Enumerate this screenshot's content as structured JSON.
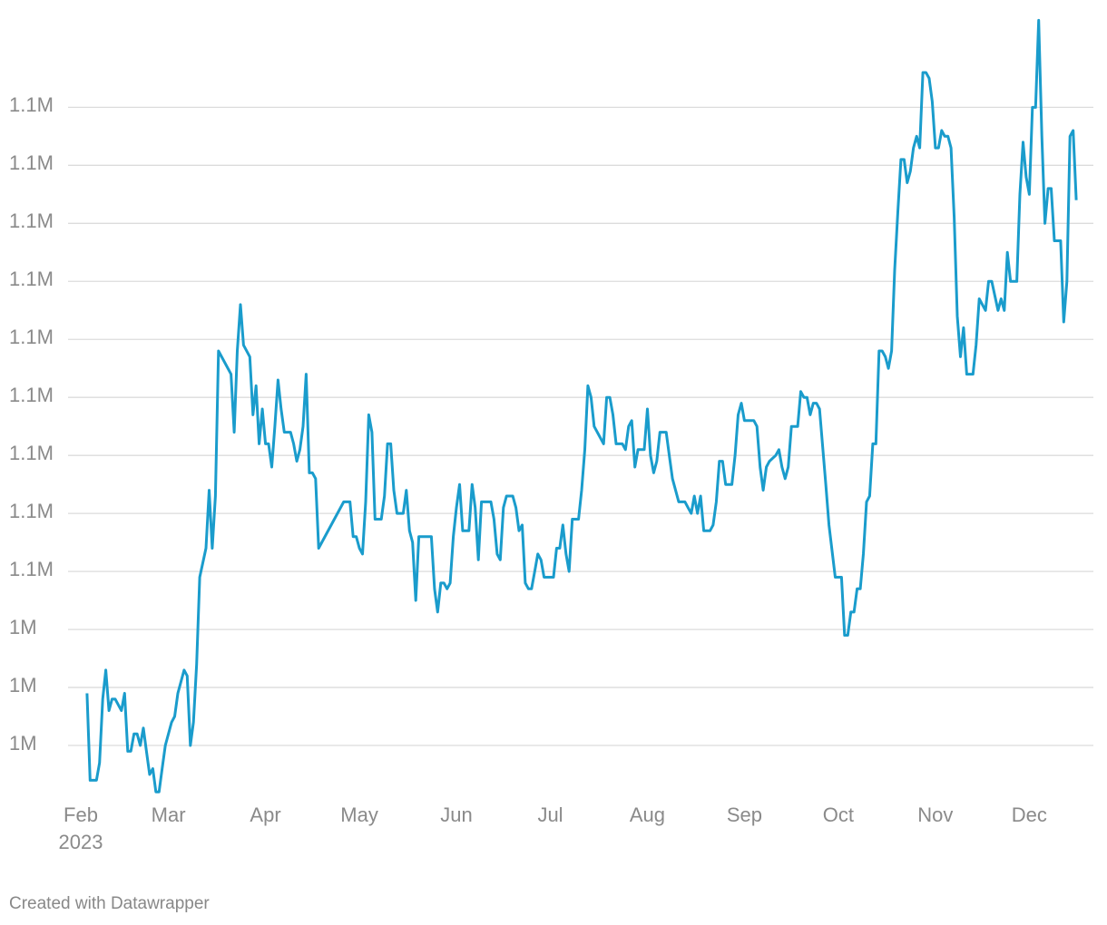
{
  "chart_data": {
    "type": "line",
    "color": "#1a9ccc",
    "year_label": "2023",
    "footer": "Created with Datawrapper",
    "x": [
      2,
      3,
      5,
      6,
      7,
      8,
      9,
      10,
      11,
      13,
      14,
      15,
      16,
      17,
      18,
      19,
      20,
      21,
      22,
      23,
      24,
      25,
      26,
      27,
      29,
      30,
      31,
      33,
      34,
      35,
      36,
      37,
      38,
      40,
      41,
      42,
      43,
      44,
      48,
      49,
      50,
      51,
      52,
      54,
      55,
      56,
      57,
      58,
      59,
      60,
      61,
      62,
      63,
      64,
      65,
      67,
      68,
      69,
      70,
      71,
      72,
      73,
      74,
      75,
      76,
      84,
      86,
      87,
      88,
      89,
      90,
      91,
      92,
      93,
      94,
      96,
      97,
      98,
      99,
      100,
      101,
      103,
      104,
      105,
      106,
      107,
      108,
      112,
      113,
      114,
      115,
      116,
      117,
      118,
      119,
      120,
      121,
      122,
      124,
      125,
      126,
      127,
      128,
      131,
      132,
      133,
      134,
      135,
      136,
      138,
      139,
      140,
      141,
      142,
      143,
      144,
      145,
      146,
      147,
      148,
      151,
      152,
      153,
      154,
      155,
      156,
      157,
      159,
      160,
      161,
      162,
      163,
      164,
      167,
      168,
      169,
      170,
      171,
      173,
      174,
      175,
      176,
      177,
      178,
      180,
      181,
      182,
      183,
      184,
      185,
      187,
      188,
      189,
      191,
      193,
      194,
      195,
      196,
      197,
      198,
      199,
      201,
      202,
      203,
      204,
      205,
      206,
      208,
      209,
      210,
      211,
      212,
      215,
      216,
      217,
      218,
      219,
      220,
      222,
      223,
      224,
      225,
      226,
      227,
      229,
      230,
      231,
      232,
      233,
      234,
      235,
      236,
      238,
      239,
      241,
      243,
      244,
      245,
      246,
      247,
      248,
      249,
      250,
      251,
      252,
      253,
      254,
      255,
      256,
      257,
      258,
      259,
      260,
      261,
      262,
      263,
      264,
      265,
      266,
      267,
      268,
      269,
      270,
      271,
      272,
      273,
      274,
      275,
      276,
      277,
      278,
      279,
      280,
      281,
      282,
      283,
      285,
      286,
      287,
      289,
      290,
      291,
      293,
      294,
      295,
      296,
      297,
      299,
      300,
      301,
      302,
      303,
      304,
      305,
      306,
      307,
      308,
      309,
      310,
      311,
      313,
      314,
      315,
      316,
      317,
      318
    ],
    "values": [
      1029000,
      1014000,
      1014000,
      1017000,
      1028000,
      1033000,
      1026000,
      1028000,
      1028000,
      1026000,
      1029000,
      1019000,
      1019000,
      1022000,
      1022000,
      1020000,
      1023000,
      1019000,
      1015000,
      1016000,
      1012000,
      1012000,
      1016000,
      1020000,
      1024000,
      1025000,
      1029000,
      1033000,
      1032000,
      1020000,
      1024000,
      1034000,
      1049000,
      1054000,
      1064000,
      1054000,
      1063000,
      1088000,
      1084000,
      1074000,
      1088000,
      1096000,
      1089000,
      1087000,
      1077000,
      1082000,
      1072000,
      1078000,
      1072000,
      1072000,
      1068000,
      1075000,
      1083000,
      1078000,
      1074000,
      1074000,
      1072000,
      1069000,
      1071000,
      1075000,
      1084000,
      1067000,
      1067000,
      1066000,
      1054000,
      1062000,
      1062000,
      1056000,
      1056000,
      1054000,
      1053000,
      1062000,
      1077000,
      1074000,
      1059000,
      1059000,
      1063000,
      1072000,
      1072000,
      1064000,
      1060000,
      1060000,
      1064000,
      1057000,
      1055000,
      1045000,
      1056000,
      1056000,
      1047000,
      1043000,
      1048000,
      1048000,
      1047000,
      1048000,
      1056000,
      1061000,
      1065000,
      1057000,
      1057000,
      1065000,
      1061000,
      1052000,
      1062000,
      1062000,
      1059000,
      1053000,
      1052000,
      1061000,
      1063000,
      1063000,
      1061000,
      1057000,
      1058000,
      1048000,
      1047000,
      1047000,
      1050000,
      1053000,
      1052000,
      1049000,
      1049000,
      1054000,
      1054000,
      1058000,
      1053000,
      1050000,
      1059000,
      1059000,
      1064000,
      1071000,
      1082000,
      1080000,
      1075000,
      1072000,
      1080000,
      1080000,
      1077000,
      1072000,
      1072000,
      1071000,
      1075000,
      1076000,
      1068000,
      1071000,
      1071000,
      1078000,
      1070000,
      1067000,
      1069000,
      1074000,
      1074000,
      1070000,
      1066000,
      1062000,
      1062000,
      1061000,
      1060000,
      1063000,
      1060000,
      1063000,
      1057000,
      1057000,
      1058000,
      1062000,
      1069000,
      1069000,
      1065000,
      1065000,
      1070000,
      1077000,
      1079000,
      1076000,
      1076000,
      1075000,
      1068000,
      1064000,
      1068000,
      1069000,
      1070000,
      1071000,
      1068000,
      1066000,
      1068000,
      1075000,
      1075000,
      1081000,
      1080000,
      1080000,
      1077000,
      1079000,
      1079000,
      1078000,
      1065000,
      1058000,
      1049000,
      1049000,
      1039000,
      1039000,
      1043000,
      1043000,
      1047000,
      1047000,
      1053000,
      1062000,
      1063000,
      1072000,
      1072000,
      1088000,
      1088000,
      1087000,
      1085000,
      1088000,
      1102000,
      1112000,
      1121000,
      1121000,
      1117000,
      1119000,
      1123000,
      1125000,
      1123000,
      1136000,
      1136000,
      1135000,
      1131000,
      1123000,
      1123000,
      1126000,
      1125000,
      1125000,
      1123000,
      1111000,
      1094000,
      1087000,
      1092000,
      1084000,
      1084000,
      1089000,
      1097000,
      1095000,
      1100000,
      1100000,
      1095000,
      1097000,
      1095000,
      1105000,
      1100000,
      1100000,
      1115000,
      1124000,
      1118000,
      1115000,
      1130000,
      1130000,
      1145000,
      1125000,
      1110000,
      1116000,
      1116000,
      1107000,
      1107000,
      1093000,
      1100000,
      1125000,
      1126000,
      1114000
    ],
    "xlim": [
      0,
      318
    ],
    "xticks": [
      {
        "value": 0,
        "label": "Feb"
      },
      {
        "value": 28,
        "label": "Mar"
      },
      {
        "value": 59,
        "label": "Apr"
      },
      {
        "value": 89,
        "label": "May"
      },
      {
        "value": 120,
        "label": "Jun"
      },
      {
        "value": 150,
        "label": "Jul"
      },
      {
        "value": 181,
        "label": "Aug"
      },
      {
        "value": 212,
        "label": "Sep"
      },
      {
        "value": 242,
        "label": "Oct"
      },
      {
        "value": 273,
        "label": "Nov"
      },
      {
        "value": 303,
        "label": "Dec"
      }
    ],
    "ylim": [
      1010000,
      1146000
    ],
    "yticks": [
      {
        "value": 1020000,
        "label": "1M"
      },
      {
        "value": 1030000,
        "label": "1M"
      },
      {
        "value": 1040000,
        "label": "1M"
      },
      {
        "value": 1050000,
        "label": "1.1M"
      },
      {
        "value": 1060000,
        "label": "1.1M"
      },
      {
        "value": 1070000,
        "label": "1.1M"
      },
      {
        "value": 1080000,
        "label": "1.1M"
      },
      {
        "value": 1090000,
        "label": "1.1M"
      },
      {
        "value": 1100000,
        "label": "1.1M"
      },
      {
        "value": 1110000,
        "label": "1.1M"
      },
      {
        "value": 1120000,
        "label": "1.1M"
      },
      {
        "value": 1130000,
        "label": "1.1M"
      }
    ],
    "grid": true
  }
}
